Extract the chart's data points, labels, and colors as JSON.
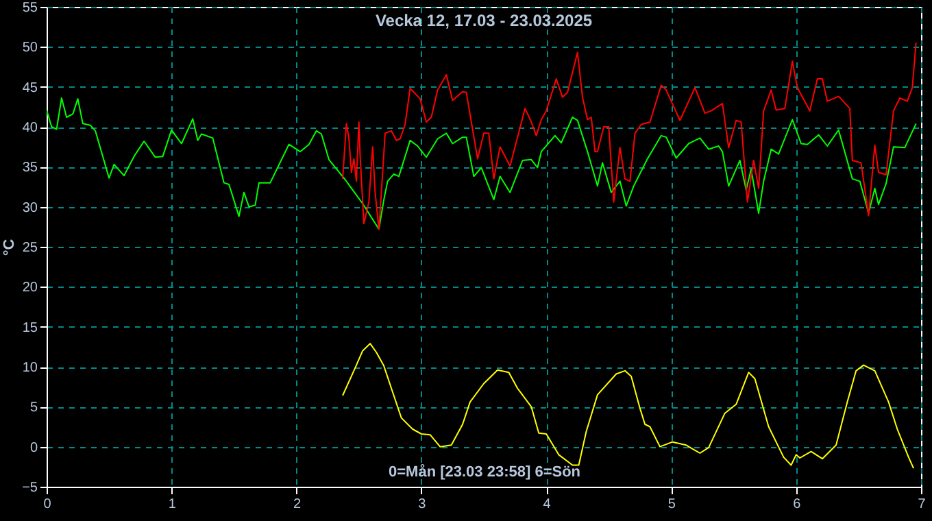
{
  "chart_data": {
    "type": "line",
    "title": "Vecka 12, 17.03 - 23.03.2025",
    "xlabel": "0=Mån [23.03 23:58] 6=Sön",
    "ylabel": "°C",
    "xlim": [
      0,
      7
    ],
    "xticks": [
      0,
      1,
      2,
      3,
      4,
      5,
      6,
      7
    ],
    "ylim": [
      -5,
      55
    ],
    "yticks": [
      -5,
      0,
      5,
      10,
      15,
      20,
      25,
      30,
      35,
      40,
      45,
      50,
      55
    ],
    "grid": true,
    "marker": "none",
    "line_style": "solid",
    "series": [
      {
        "color": "#00ff00",
        "x": [
          0,
          0.04,
          0.08,
          0.12,
          0.16,
          0.21,
          0.25,
          0.29,
          0.35,
          0.39,
          0.5,
          0.54,
          0.62,
          0.7,
          0.78,
          0.87,
          0.93,
          1.0,
          1.08,
          1.17,
          1.21,
          1.24,
          1.33,
          1.42,
          1.46,
          1.54,
          1.58,
          1.62,
          1.67,
          1.7,
          1.79,
          1.94,
          2.03,
          2.1,
          2.16,
          2.2,
          2.26,
          2.39,
          2.53,
          2.66,
          2.7,
          2.73,
          2.78,
          2.82,
          2.91,
          2.97,
          3.04,
          3.13,
          3.2,
          3.25,
          3.33,
          3.36,
          3.42,
          3.48,
          3.58,
          3.63,
          3.71,
          3.81,
          3.88,
          3.93,
          3.96,
          4.07,
          4.12,
          4.21,
          4.25,
          4.33,
          4.41,
          4.45,
          4.52,
          4.59,
          4.64,
          4.7,
          4.81,
          4.92,
          4.96,
          5.04,
          5.14,
          5.23,
          5.3,
          5.38,
          5.41,
          5.46,
          5.55,
          5.6,
          5.64,
          5.7,
          5.74,
          5.8,
          5.86,
          5.97,
          6.04,
          6.09,
          6.18,
          6.25,
          6.34,
          6.45,
          6.51,
          6.58,
          6.63,
          6.66,
          6.72,
          6.78,
          6.87,
          6.96
        ],
        "values": [
          42.1,
          40.0,
          39.7,
          43.6,
          41.2,
          41.6,
          43.5,
          40.4,
          40.2,
          39.5,
          33.6,
          35.3,
          33.9,
          36.3,
          38.2,
          36.2,
          36.3,
          39.6,
          37.9,
          41.0,
          38.3,
          39.1,
          38.6,
          33.0,
          32.8,
          28.8,
          31.8,
          30.0,
          30.2,
          33.0,
          33.0,
          37.8,
          36.9,
          37.8,
          39.5,
          39.1,
          35.9,
          33.4,
          30.4,
          27.2,
          30.9,
          33.2,
          34.1,
          33.8,
          38.3,
          37.6,
          36.2,
          38.5,
          39.2,
          37.9,
          38.7,
          38.7,
          33.8,
          34.9,
          30.9,
          33.8,
          31.8,
          35.8,
          35.9,
          34.9,
          36.9,
          38.9,
          38.0,
          41.2,
          40.8,
          36.9,
          32.6,
          35.5,
          31.8,
          33.2,
          30.1,
          32.6,
          36.0,
          38.9,
          38.7,
          36.1,
          37.9,
          38.6,
          37.2,
          37.6,
          36.9,
          32.6,
          35.8,
          32.1,
          34.7,
          29.2,
          33.2,
          37.2,
          36.6,
          40.9,
          37.9,
          37.8,
          39.0,
          37.6,
          39.6,
          33.5,
          33.2,
          29.2,
          32.3,
          30.3,
          32.9,
          37.5,
          37.4,
          40.4
        ]
      },
      {
        "color": "#ff0000",
        "x": [
          2.37,
          2.4,
          2.42,
          2.44,
          2.46,
          2.48,
          2.5,
          2.51,
          2.54,
          2.58,
          2.61,
          2.63,
          2.66,
          2.68,
          2.71,
          2.76,
          2.8,
          2.83,
          2.87,
          2.91,
          2.99,
          3.04,
          3.08,
          3.13,
          3.2,
          3.25,
          3.33,
          3.36,
          3.41,
          3.45,
          3.5,
          3.54,
          3.58,
          3.63,
          3.71,
          3.83,
          3.88,
          3.92,
          3.96,
          4.0,
          4.08,
          4.13,
          4.17,
          4.25,
          4.29,
          4.33,
          4.36,
          4.39,
          4.41,
          4.46,
          4.5,
          4.54,
          4.59,
          4.63,
          4.67,
          4.71,
          4.76,
          4.83,
          4.92,
          4.96,
          5.07,
          5.19,
          5.27,
          5.32,
          5.41,
          5.46,
          5.52,
          5.56,
          5.61,
          5.66,
          5.7,
          5.74,
          5.8,
          5.84,
          5.91,
          5.97,
          6.01,
          6.11,
          6.17,
          6.21,
          6.25,
          6.34,
          6.43,
          6.45,
          6.52,
          6.58,
          6.63,
          6.66,
          6.72,
          6.78,
          6.83,
          6.89,
          6.93,
          6.96
        ],
        "values": [
          33.5,
          40.4,
          38.6,
          34.3,
          36.0,
          33.2,
          40.6,
          36.3,
          27.9,
          30.6,
          37.5,
          31.8,
          27.2,
          31.8,
          39.2,
          39.5,
          38.3,
          38.5,
          40.3,
          44.8,
          43.5,
          40.6,
          41.2,
          44.6,
          46.5,
          43.3,
          44.4,
          44.3,
          39.7,
          36.0,
          39.2,
          39.2,
          33.5,
          37.5,
          35.1,
          42.3,
          40.6,
          38.9,
          40.9,
          42.0,
          46.0,
          43.7,
          44.3,
          49.3,
          43.7,
          40.9,
          41.2,
          36.9,
          36.9,
          40.0,
          40.0,
          30.6,
          37.4,
          33.5,
          33.2,
          39.2,
          40.3,
          40.6,
          45.2,
          44.6,
          40.8,
          44.9,
          41.7,
          42.0,
          42.9,
          37.4,
          40.8,
          40.6,
          30.6,
          35.8,
          32.3,
          42.0,
          44.6,
          42.1,
          42.3,
          48.2,
          44.9,
          42.0,
          46.0,
          46.0,
          43.2,
          43.8,
          42.3,
          35.8,
          35.5,
          28.9,
          37.7,
          34.3,
          34.0,
          42.0,
          43.6,
          43.2,
          44.9,
          50.5
        ]
      },
      {
        "color": "#ffff00",
        "x": [
          2.37,
          2.48,
          2.53,
          2.59,
          2.64,
          2.7,
          2.76,
          2.84,
          2.93,
          3.0,
          3.07,
          3.15,
          3.24,
          3.33,
          3.39,
          3.5,
          3.61,
          3.7,
          3.77,
          3.88,
          3.94,
          4.0,
          4.1,
          4.21,
          4.26,
          4.32,
          4.41,
          4.56,
          4.63,
          4.68,
          4.75,
          4.79,
          4.83,
          4.91,
          5.01,
          5.12,
          5.23,
          5.3,
          5.43,
          5.52,
          5.62,
          5.67,
          5.78,
          5.9,
          5.96,
          6.0,
          6.03,
          6.12,
          6.21,
          6.32,
          6.41,
          6.48,
          6.54,
          6.63,
          6.74,
          6.81,
          6.9,
          6.94
        ],
        "values": [
          6.4,
          10.2,
          12.0,
          12.9,
          11.8,
          10.1,
          7.3,
          3.6,
          2.2,
          1.6,
          1.5,
          0.0,
          0.2,
          2.8,
          5.6,
          7.9,
          9.6,
          9.3,
          7.3,
          5.0,
          1.7,
          1.6,
          -1.0,
          -2.3,
          -2.3,
          1.9,
          6.5,
          9.1,
          9.5,
          8.8,
          4.8,
          2.8,
          2.5,
          0.0,
          0.6,
          0.2,
          -0.8,
          -0.1,
          4.2,
          5.3,
          9.3,
          8.5,
          2.5,
          -1.3,
          -2.3,
          -1.0,
          -1.4,
          -0.6,
          -1.5,
          0.2,
          5.6,
          9.5,
          10.2,
          9.5,
          5.6,
          2.2,
          -1.3,
          -2.7
        ]
      }
    ]
  }
}
